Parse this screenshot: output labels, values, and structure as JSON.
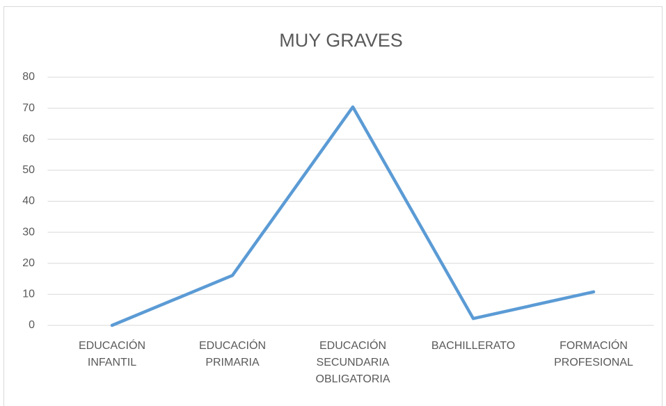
{
  "chart_data": {
    "type": "line",
    "title": "MUY GRAVES",
    "categories": [
      "EDUCACIÓN INFANTIL",
      "EDUCACIÓN PRIMARIA",
      "EDUCACIÓN SECUNDARIA OBLIGATORIA",
      "BACHILLERATO",
      "FORMACIÓN PROFESIONAL"
    ],
    "series": [
      {
        "name": "MUY GRAVES",
        "color": "#5b9bd5",
        "values": [
          0,
          16.1,
          70.4,
          2.2,
          10.8
        ]
      }
    ],
    "ylim": [
      0,
      80
    ],
    "yticks": [
      0,
      10,
      20,
      30,
      40,
      50,
      60,
      70,
      80
    ],
    "grid": true
  }
}
